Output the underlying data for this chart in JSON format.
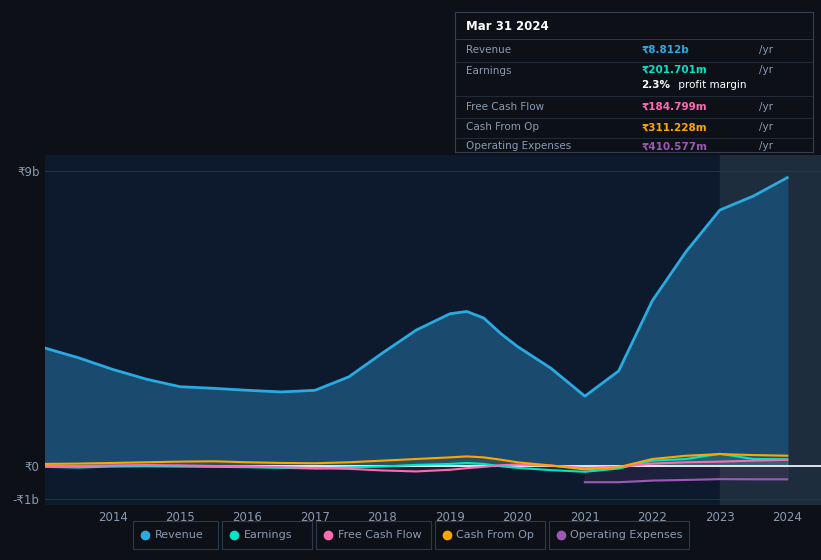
{
  "background_color": "#0d1117",
  "plot_bg_color": "#0d1a2e",
  "years": [
    2013.0,
    2013.5,
    2014.0,
    2014.5,
    2015.0,
    2015.5,
    2016.0,
    2016.5,
    2017.0,
    2017.5,
    2018.0,
    2018.5,
    2019.0,
    2019.25,
    2019.5,
    2019.75,
    2020.0,
    2020.5,
    2021.0,
    2021.5,
    2022.0,
    2022.5,
    2023.0,
    2023.5,
    2024.0
  ],
  "revenue": [
    3600,
    3300,
    2950,
    2650,
    2420,
    2370,
    2310,
    2260,
    2310,
    2720,
    3450,
    4150,
    4650,
    4720,
    4520,
    4050,
    3650,
    2980,
    2130,
    2900,
    5050,
    6550,
    7820,
    8250,
    8812
  ],
  "earnings": [
    -30,
    -50,
    -20,
    -10,
    -20,
    -30,
    -40,
    -60,
    -80,
    -50,
    -20,
    30,
    60,
    90,
    60,
    -10,
    -60,
    -130,
    -180,
    -80,
    160,
    210,
    370,
    210,
    201
  ],
  "free_cash_flow": [
    -10,
    -5,
    15,
    25,
    15,
    -5,
    -15,
    -40,
    -70,
    -90,
    -140,
    -170,
    -120,
    -70,
    -30,
    20,
    40,
    10,
    -70,
    -30,
    70,
    110,
    130,
    160,
    185
  ],
  "cash_from_op": [
    60,
    70,
    90,
    110,
    130,
    140,
    110,
    90,
    80,
    110,
    160,
    210,
    260,
    290,
    260,
    190,
    110,
    10,
    -110,
    -40,
    210,
    310,
    360,
    330,
    311
  ],
  "operating_expenses": [
    null,
    null,
    null,
    null,
    null,
    null,
    null,
    null,
    null,
    null,
    null,
    null,
    null,
    null,
    null,
    null,
    null,
    null,
    -500,
    -500,
    -450,
    -430,
    -405,
    -410,
    -410
  ],
  "shaded_start": 2023.0,
  "shaded_end": 2024.5,
  "xlim": [
    2013.0,
    2024.5
  ],
  "ylim_min": -1200,
  "ylim_max": 9500,
  "ytick_vals": [
    9000,
    0,
    -1000
  ],
  "ytick_labels": [
    "₹9b",
    "₹0",
    "-₹1b"
  ],
  "xticks": [
    2014,
    2015,
    2016,
    2017,
    2018,
    2019,
    2020,
    2021,
    2022,
    2023,
    2024
  ],
  "revenue_color": "#29abe2",
  "earnings_color": "#00e5c8",
  "fcf_color": "#ff69b4",
  "cop_color": "#ffa500",
  "opex_color": "#9b59b6",
  "revenue_fill_color": "#1a4a6e",
  "zero_line_color": "#ffffff",
  "grid_color": "#2a3a4a",
  "text_color": "#8a9ab0",
  "shaded_color": "#1e2d3d",
  "info_box": {
    "date": "Mar 31 2024",
    "revenue_label": "Revenue",
    "revenue_value": "₹8.812b",
    "revenue_color": "#29abe2",
    "earnings_label": "Earnings",
    "earnings_value": "₹201.701m",
    "earnings_color": "#00e5c8",
    "margin_bold": "2.3%",
    "margin_rest": " profit margin",
    "fcf_label": "Free Cash Flow",
    "fcf_value": "₹184.799m",
    "fcf_color": "#ff69b4",
    "cop_label": "Cash From Op",
    "cop_value": "₹311.228m",
    "cop_color": "#ffa500",
    "opex_label": "Operating Expenses",
    "opex_value": "₹410.577m",
    "opex_color": "#9b59b6",
    "bg_color": "#0d1117",
    "border_color": "#333f50",
    "text_light": "#8a9ab0",
    "text_white": "#ffffff"
  },
  "legend": [
    {
      "label": "Revenue",
      "color": "#29abe2"
    },
    {
      "label": "Earnings",
      "color": "#00e5c8"
    },
    {
      "label": "Free Cash Flow",
      "color": "#ff69b4"
    },
    {
      "label": "Cash From Op",
      "color": "#ffa500"
    },
    {
      "label": "Operating Expenses",
      "color": "#9b59b6"
    }
  ]
}
